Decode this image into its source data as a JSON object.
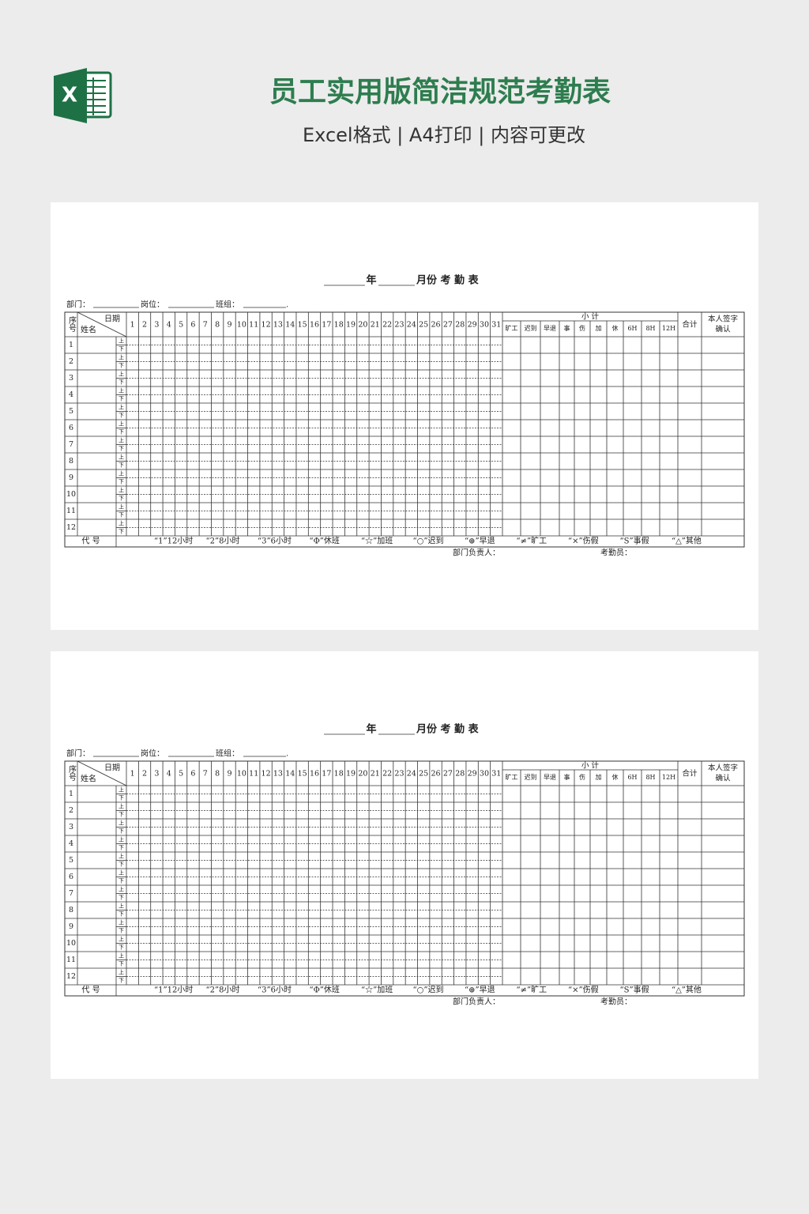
{
  "header": {
    "title": "员工实用版简洁规范考勤表",
    "subtitle": "Excel格式 | A4打印 | 内容可更改"
  },
  "sheets": [
    {
      "title_year": "年",
      "title_month": "月份 考 勤 表",
      "department": "部门：",
      "post": "岗位：",
      "team": "班组：",
      "info_end": ".",
      "seq_header": "序号",
      "date_header": "日期",
      "name_header": "姓名",
      "days": [
        1,
        2,
        3,
        4,
        5,
        6,
        7,
        8,
        9,
        10,
        11,
        12,
        13,
        14,
        15,
        16,
        17,
        18,
        19,
        20,
        21,
        22,
        23,
        24,
        25,
        26,
        27,
        28,
        29,
        30,
        31
      ],
      "subtotal_header": "小 计",
      "subtotal_columns": [
        "旷工",
        "迟到",
        "早退",
        "事",
        "伤",
        "加",
        "休",
        "6H",
        "8H",
        "12H"
      ],
      "total_header": "合计",
      "signature_header": [
        "本人签字",
        "确认"
      ],
      "rows": [
        1,
        2,
        3,
        4,
        5,
        6,
        7,
        8,
        9,
        10,
        11,
        12
      ],
      "halves": [
        "上",
        "下"
      ],
      "code_label": "代 号",
      "legend": [
        "“1”12小时",
        "“2”8小时",
        "“3”6小时",
        "“Φ”休班",
        "“☆”加班",
        "“○”迟到",
        "“⊕”早退",
        "“≠”旷工",
        "“×”伤假",
        "“S”事假",
        "“△”其他"
      ],
      "manager": "部门负责人：",
      "clerk": "考勤员："
    },
    {
      "title_year": "年",
      "title_month": "月份 考 勤 表",
      "department": "部门：",
      "post": "岗位：",
      "team": "班组：",
      "info_end": ".",
      "seq_header": "序号",
      "date_header": "日期",
      "name_header": "姓名",
      "days": [
        1,
        2,
        3,
        4,
        5,
        6,
        7,
        8,
        9,
        10,
        11,
        12,
        13,
        14,
        15,
        16,
        17,
        18,
        19,
        20,
        21,
        22,
        23,
        24,
        25,
        26,
        27,
        28,
        29,
        30,
        31
      ],
      "subtotal_header": "小 计",
      "subtotal_columns": [
        "旷工",
        "迟到",
        "早退",
        "事",
        "伤",
        "加",
        "休",
        "6H",
        "8H",
        "12H"
      ],
      "total_header": "合计",
      "signature_header": [
        "本人签字",
        "确认"
      ],
      "rows": [
        1,
        2,
        3,
        4,
        5,
        6,
        7,
        8,
        9,
        10,
        11,
        12
      ],
      "halves": [
        "上",
        "下"
      ],
      "code_label": "代 号",
      "legend": [
        "“1”12小时",
        "“2”8小时",
        "“3”6小时",
        "“Φ”休班",
        "“☆”加班",
        "“○”迟到",
        "“⊕”早退",
        "“≠”旷工",
        "“×”伤假",
        "“S”事假",
        "“△”其他"
      ],
      "manager": "部门负责人：",
      "clerk": "考勤员："
    }
  ]
}
